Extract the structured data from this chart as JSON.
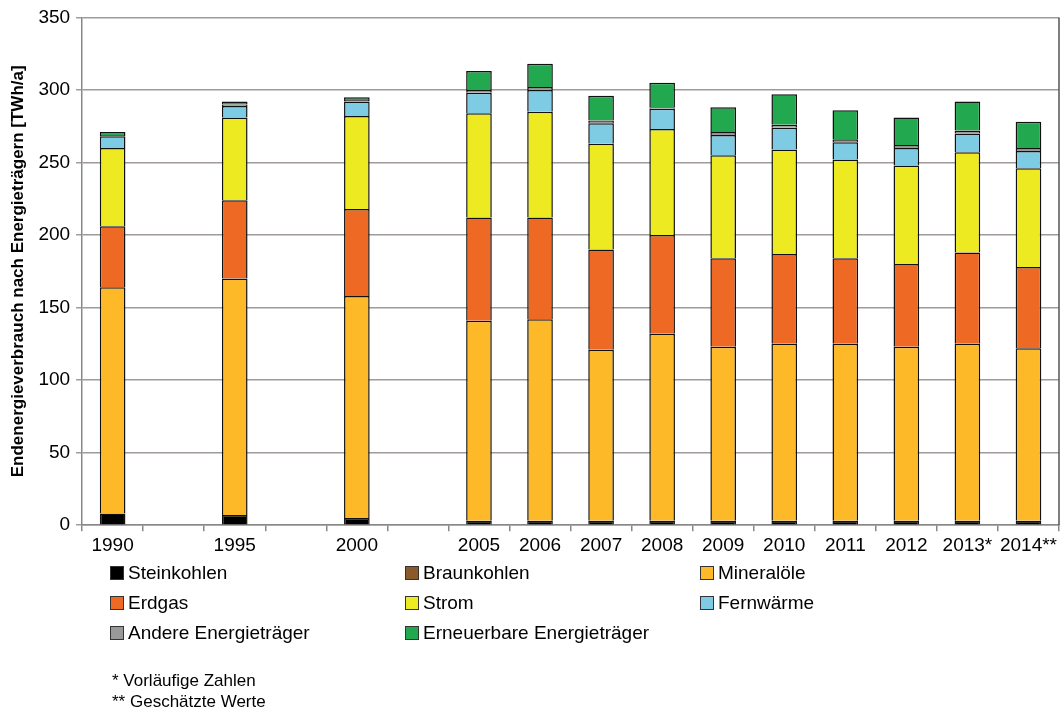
{
  "chart_data": {
    "type": "bar",
    "stacked": true,
    "ylabel": "Endenergieverbrauch nach Energieträgern [TWh/a]",
    "categories": [
      "1990",
      null,
      "1995",
      null,
      "2000",
      null,
      "2005",
      "2006",
      "2007",
      "2008",
      "2009",
      "2010",
      "2011",
      "2012",
      "2013*",
      "2014**"
    ],
    "series": [
      {
        "name": "Steinkohlen",
        "color": "#000000",
        "values": [
          8,
          null,
          7,
          null,
          5,
          null,
          3,
          3,
          3,
          3,
          3,
          3,
          3,
          3,
          3,
          3
        ]
      },
      {
        "name": "Braunkohlen",
        "color": "#8b5a2b",
        "values": [
          0,
          null,
          0,
          null,
          0,
          null,
          0,
          0,
          0,
          0,
          0,
          0,
          0,
          0,
          0,
          0
        ]
      },
      {
        "name": "Mineralöle",
        "color": "#fdb927",
        "values": [
          156,
          null,
          163,
          null,
          153,
          null,
          138,
          139,
          118,
          129,
          120,
          122,
          122,
          120,
          122,
          119
        ]
      },
      {
        "name": "Erdgas",
        "color": "#ee6a24",
        "values": [
          42,
          null,
          54,
          null,
          60,
          null,
          71,
          70,
          69,
          68,
          61,
          62,
          59,
          57,
          63,
          56
        ]
      },
      {
        "name": "Strom",
        "color": "#eeea22",
        "values": [
          54,
          null,
          57,
          null,
          64,
          null,
          72,
          73,
          73,
          73,
          71,
          72,
          68,
          68,
          69,
          68
        ]
      },
      {
        "name": "Fernwärme",
        "color": "#7ecbe4",
        "values": [
          8,
          null,
          8,
          null,
          10,
          null,
          14,
          15,
          14,
          14,
          14,
          15,
          12,
          12,
          13,
          12
        ]
      },
      {
        "name": "Andere Energieträger",
        "color": "#999999",
        "values": [
          1,
          null,
          1,
          null,
          1,
          null,
          2,
          2,
          2,
          1,
          2,
          2,
          2,
          2,
          2,
          2
        ]
      },
      {
        "name": "Erneuerbare Energieträger",
        "color": "#22a84f",
        "values": [
          2,
          null,
          2,
          null,
          2,
          null,
          13,
          16,
          17,
          17,
          17,
          21,
          20,
          19,
          20,
          18
        ]
      }
    ],
    "ylim": [
      0,
      350
    ],
    "yticks": [
      0,
      50,
      100,
      150,
      200,
      250,
      300,
      350
    ],
    "grid": "y",
    "legend": "bottom",
    "annotations": [
      "* Vorläufige Zahlen",
      "** Geschätzte Werte"
    ]
  }
}
